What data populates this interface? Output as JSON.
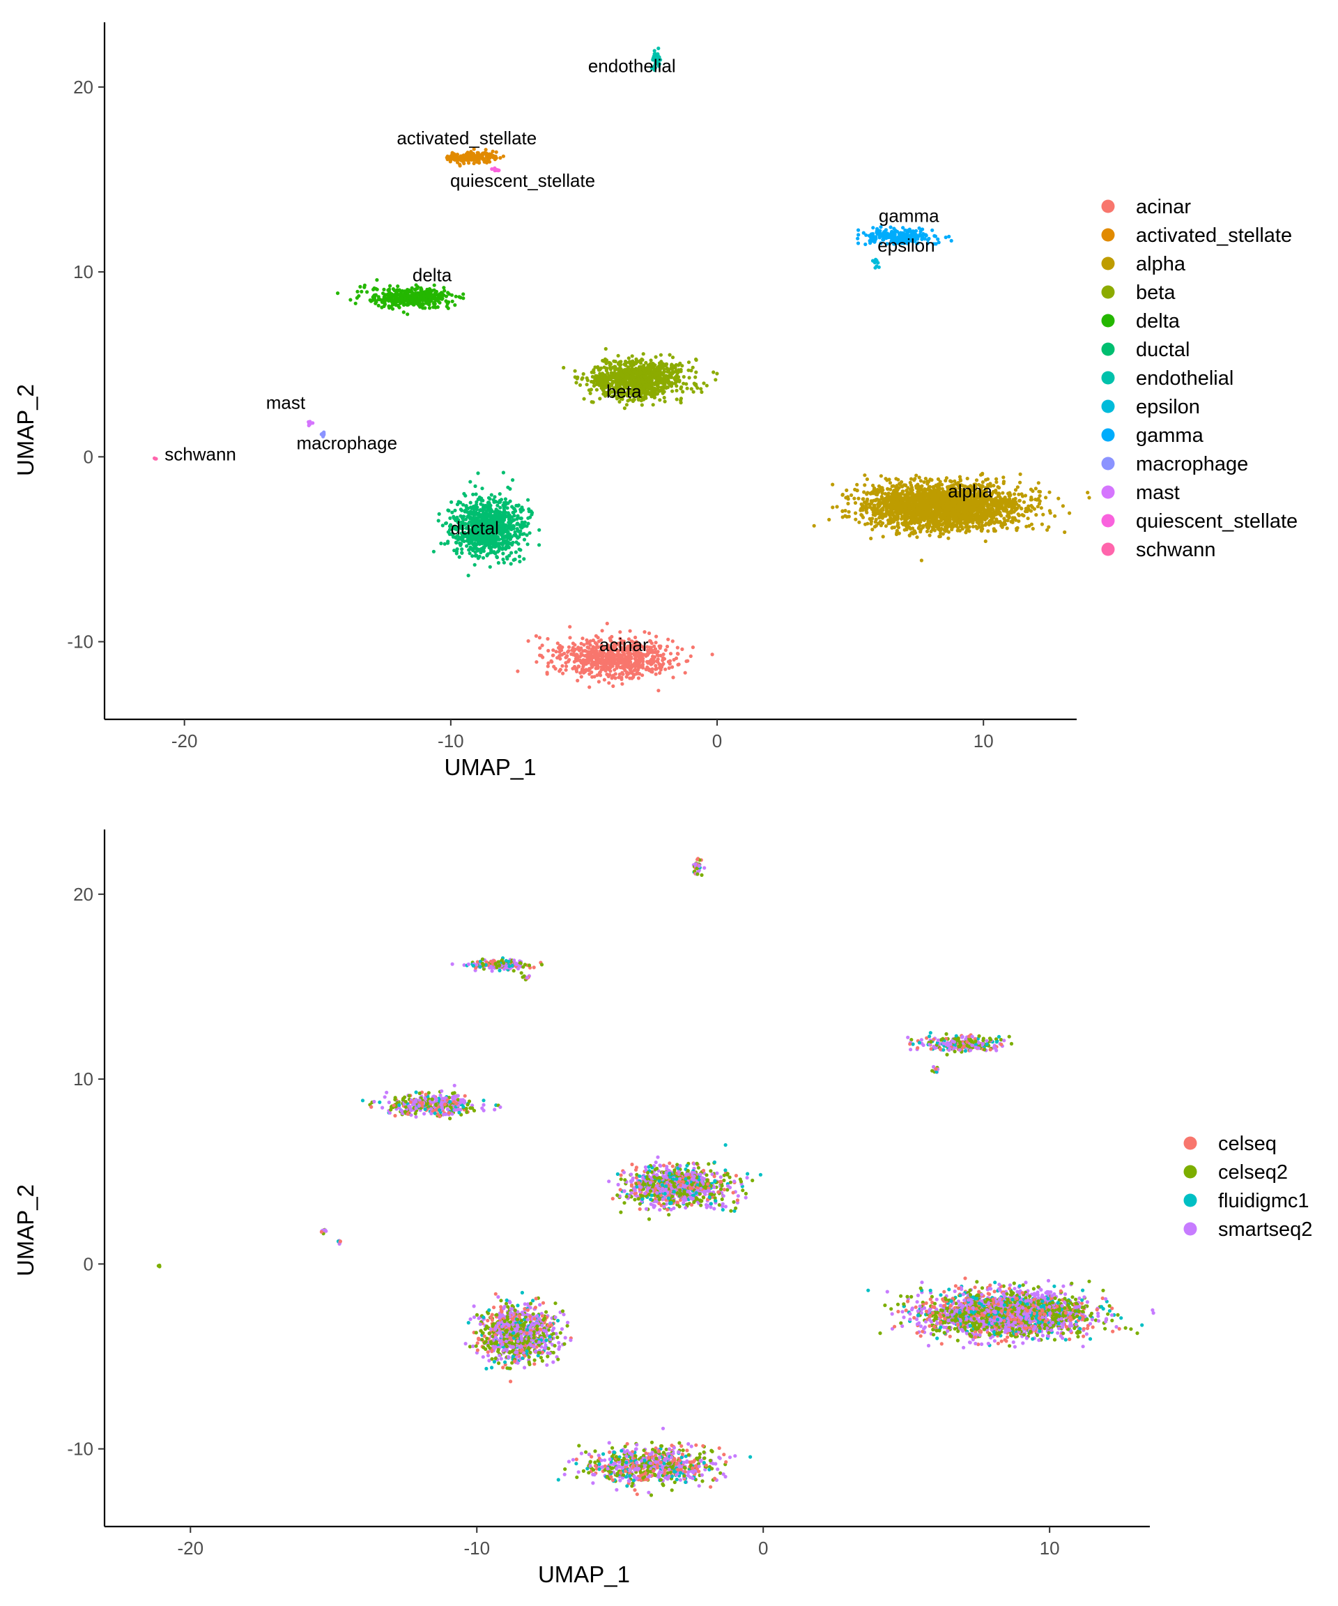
{
  "chart_data": [
    {
      "type": "scatter",
      "title": "",
      "xlabel": "UMAP_1",
      "ylabel": "UMAP_2",
      "xlim": [
        -23,
        13.5
      ],
      "ylim": [
        -14.2,
        23.5
      ],
      "xticks": [
        -20,
        -10,
        0,
        10
      ],
      "yticks": [
        -10,
        0,
        10,
        20
      ],
      "tick_labels_x": [
        "-20",
        "-10",
        "0",
        "10"
      ],
      "tick_labels_y": [
        "-10",
        "0",
        "10",
        "20"
      ],
      "grid": false,
      "legend_position": "right",
      "color_by": "cell_type",
      "legend": [
        {
          "name": "acinar",
          "color": "#F8766D"
        },
        {
          "name": "activated_stellate",
          "color": "#E18A00"
        },
        {
          "name": "alpha",
          "color": "#BE9C00"
        },
        {
          "name": "beta",
          "color": "#8CAB00"
        },
        {
          "name": "delta",
          "color": "#24B700"
        },
        {
          "name": "ductal",
          "color": "#00BE70"
        },
        {
          "name": "endothelial",
          "color": "#00C1AB"
        },
        {
          "name": "epsilon",
          "color": "#00BBDA"
        },
        {
          "name": "gamma",
          "color": "#00ACFC"
        },
        {
          "name": "macrophage",
          "color": "#8B93FF"
        },
        {
          "name": "mast",
          "color": "#D575FE"
        },
        {
          "name": "quiescent_stellate",
          "color": "#F962DD"
        },
        {
          "name": "schwann",
          "color": "#FF65AC"
        }
      ],
      "clusters": [
        {
          "label": "acinar",
          "x": -3.9,
          "y": -10.9,
          "spread_x": 2.0,
          "spread_y": 0.9,
          "count": 700
        },
        {
          "label": "activated_stellate",
          "x": -9.2,
          "y": 16.2,
          "spread_x": 0.8,
          "spread_y": 0.25,
          "count": 180
        },
        {
          "label": "quiescent_stellate",
          "x": -8.3,
          "y": 15.5,
          "spread_x": 0.15,
          "spread_y": 0.08,
          "count": 12
        },
        {
          "label": "endothelial",
          "x": -2.3,
          "y": 21.5,
          "spread_x": 0.15,
          "spread_y": 0.35,
          "count": 40
        },
        {
          "label": "gamma",
          "x": 6.8,
          "y": 11.9,
          "spread_x": 1.3,
          "spread_y": 0.35,
          "count": 260
        },
        {
          "label": "epsilon",
          "x": 6.0,
          "y": 10.5,
          "spread_x": 0.1,
          "spread_y": 0.15,
          "count": 12
        },
        {
          "label": "delta",
          "x": -11.5,
          "y": 8.6,
          "spread_x": 1.5,
          "spread_y": 0.5,
          "count": 380
        },
        {
          "label": "beta",
          "x": -3.0,
          "y": 4.2,
          "spread_x": 1.6,
          "spread_y": 0.95,
          "count": 950
        },
        {
          "label": "mast",
          "x": -15.3,
          "y": 1.8,
          "spread_x": 0.08,
          "spread_y": 0.1,
          "count": 8
        },
        {
          "label": "macrophage",
          "x": -14.8,
          "y": 1.2,
          "spread_x": 0.08,
          "spread_y": 0.1,
          "count": 8
        },
        {
          "label": "schwann",
          "x": -21.1,
          "y": -0.1,
          "spread_x": 0.05,
          "spread_y": 0.05,
          "count": 3
        },
        {
          "label": "ductal",
          "x": -8.6,
          "y": -3.8,
          "spread_x": 1.2,
          "spread_y": 1.4,
          "count": 900
        },
        {
          "label": "alpha",
          "x": 8.5,
          "y": -2.7,
          "spread_x": 2.6,
          "spread_y": 1.1,
          "count": 2400
        }
      ],
      "annotations": [
        {
          "text": "acinar",
          "x": -3.5,
          "y": -10.5
        },
        {
          "text": "activated_stellate",
          "x": -9.4,
          "y": 16.9
        },
        {
          "text": "quiescent_stellate",
          "x": -7.3,
          "y": 14.6
        },
        {
          "text": "endothelial",
          "x": -3.2,
          "y": 20.8
        },
        {
          "text": "gamma",
          "x": 7.2,
          "y": 12.7
        },
        {
          "text": "epsilon",
          "x": 7.1,
          "y": 11.1
        },
        {
          "text": "delta",
          "x": -10.7,
          "y": 9.5
        },
        {
          "text": "beta",
          "x": -3.5,
          "y": 3.2
        },
        {
          "text": "mast",
          "x": -16.2,
          "y": 2.6
        },
        {
          "text": "macrophage",
          "x": -13.9,
          "y": 0.4
        },
        {
          "text": "schwann",
          "x": -19.4,
          "y": -0.2
        },
        {
          "text": "ductal",
          "x": -9.1,
          "y": -4.2
        },
        {
          "text": "alpha",
          "x": 9.5,
          "y": -2.2
        }
      ]
    },
    {
      "type": "scatter",
      "title": "",
      "xlabel": "UMAP_1",
      "ylabel": "UMAP_2",
      "xlim": [
        -23,
        13.5
      ],
      "ylim": [
        -14.2,
        23.5
      ],
      "xticks": [
        -20,
        -10,
        0,
        10
      ],
      "yticks": [
        -10,
        0,
        10,
        20
      ],
      "tick_labels_x": [
        "-20",
        "-10",
        "0",
        "10"
      ],
      "tick_labels_y": [
        "-10",
        "0",
        "10",
        "20"
      ],
      "grid": false,
      "legend_position": "right",
      "color_by": "technology",
      "legend": [
        {
          "name": "celseq",
          "color": "#F8766D"
        },
        {
          "name": "celseq2",
          "color": "#7CAE00"
        },
        {
          "name": "fluidigmc1",
          "color": "#00BFC4"
        },
        {
          "name": "smartseq2",
          "color": "#C77CFF"
        }
      ],
      "technology_mix": [
        0.18,
        0.32,
        0.12,
        0.38
      ]
    }
  ]
}
